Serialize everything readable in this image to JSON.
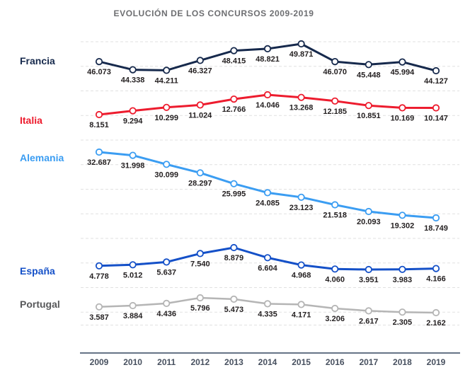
{
  "title": "EVOLUCIÓN DE LOS CONCURSOS 2009-2019",
  "chart_data": {
    "type": "line",
    "title": "EVOLUCIÓN DE LOS CONCURSOS 2009-2019",
    "layout_hint": "five stacked line bands (small multiples) sharing one x axis; dashed light gridlines; white-filled circular markers; value label under every point; series name at left of each band",
    "grid": true,
    "legend_position": "left",
    "x_labels": [
      "2009",
      "2010",
      "2011",
      "2012",
      "2013",
      "2014",
      "2015",
      "2016",
      "2017",
      "2018",
      "2019"
    ],
    "value_label_color": "#231f20",
    "axis_line_color": "#33475e",
    "tick_label_color": "#47505f",
    "gridline_color": "#e1e1e1",
    "series": [
      {
        "name": "Francia",
        "color": "#16294c",
        "label_color": "#16294c",
        "values": [
          46073,
          44338,
          44211,
          46327,
          48415,
          48821,
          49871,
          46070,
          45448,
          45994,
          44127
        ],
        "labels": [
          "46.073",
          "44.338",
          "44.211",
          "46.327",
          "48.415",
          "48.821",
          "49.871",
          "46.070",
          "45.448",
          "45.994",
          "44.127"
        ]
      },
      {
        "name": "Italia",
        "color": "#ed1c2e",
        "label_color": "#ed1c2e",
        "values": [
          8151,
          9294,
          10299,
          11024,
          12766,
          14046,
          13268,
          12185,
          10851,
          10169,
          10147
        ],
        "labels": [
          "8.151",
          "9.294",
          "10.299",
          "11.024",
          "12.766",
          "14.046",
          "13.268",
          "12.185",
          "10.851",
          "10.169",
          "10.147"
        ]
      },
      {
        "name": "Alemania",
        "color": "#3b9df2",
        "label_color": "#3b9df2",
        "values": [
          32687,
          31998,
          30099,
          28297,
          25995,
          24085,
          23123,
          21518,
          20093,
          19302,
          18749
        ],
        "labels": [
          "32.687",
          "31.998",
          "30.099",
          "28.297",
          "25.995",
          "24.085",
          "23.123",
          "21.518",
          "20.093",
          "19.302",
          "18.749"
        ]
      },
      {
        "name": "España",
        "color": "#1450c8",
        "label_color": "#1450c8",
        "values": [
          4778,
          5012,
          5637,
          7540,
          8879,
          6604,
          4968,
          4060,
          3951,
          3983,
          4166
        ],
        "labels": [
          "4.778",
          "5.012",
          "5.637",
          "7.540",
          "8.879",
          "6.604",
          "4.968",
          "4.060",
          "3.951",
          "3.983",
          "4.166"
        ]
      },
      {
        "name": "Portugal",
        "color": "#b5b5b5",
        "label_color": "#58595b",
        "values": [
          3587,
          3884,
          4436,
          5796,
          5473,
          4335,
          4171,
          3206,
          2617,
          2305,
          2162
        ],
        "labels": [
          "3.587",
          "3.884",
          "4.436",
          "5.796",
          "5.473",
          "4.335",
          "4.171",
          "3.206",
          "2.617",
          "2.305",
          "2.162"
        ]
      }
    ]
  }
}
